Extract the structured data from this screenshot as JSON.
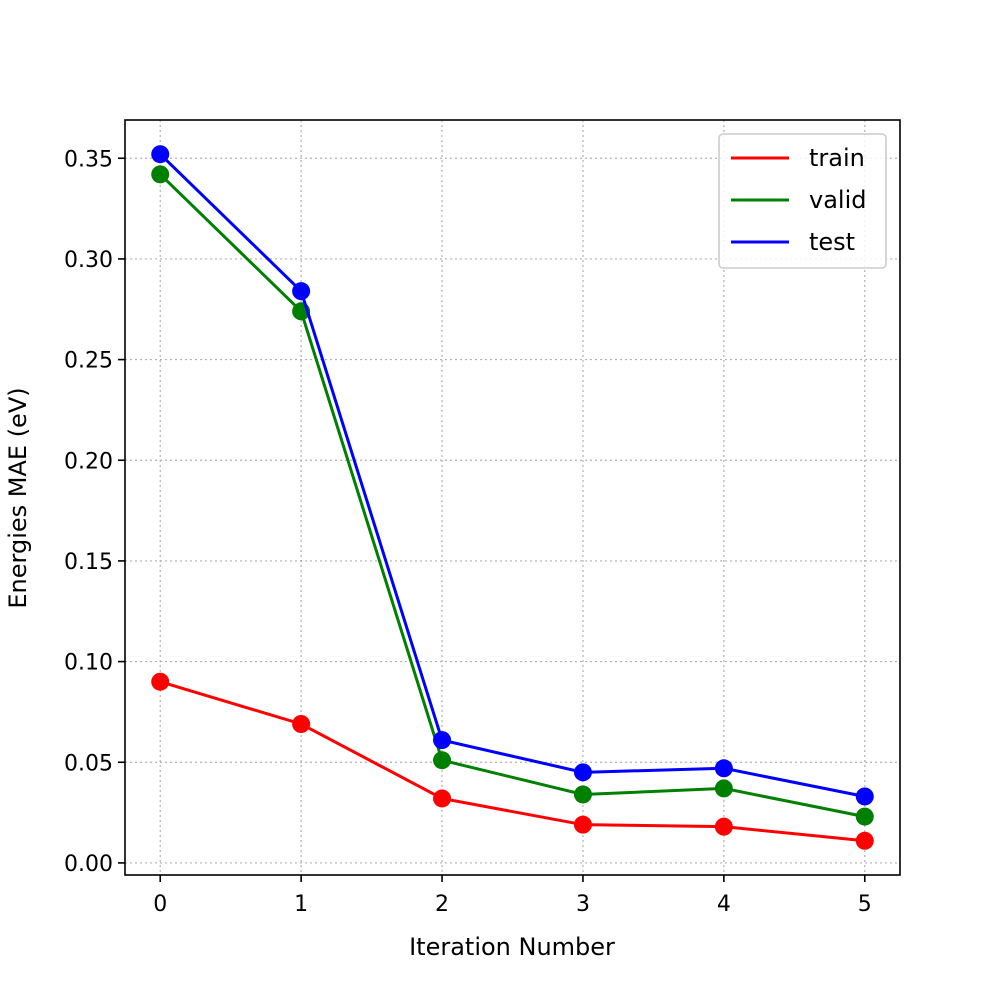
{
  "chart_data": {
    "type": "line",
    "title": "",
    "xlabel": "Iteration Number",
    "ylabel": "Energies MAE (eV)",
    "x": [
      0,
      1,
      2,
      3,
      4,
      5
    ],
    "x_ticks": [
      "0",
      "1",
      "2",
      "3",
      "4",
      "5"
    ],
    "xlim": [
      -0.25,
      5.25
    ],
    "ylim": [
      -0.006,
      0.369
    ],
    "y_ticks": [
      "0.00",
      "0.05",
      "0.10",
      "0.15",
      "0.20",
      "0.25",
      "0.30",
      "0.35"
    ],
    "y_tick_values": [
      0.0,
      0.05,
      0.1,
      0.15,
      0.2,
      0.25,
      0.3,
      0.35
    ],
    "grid": true,
    "legend_position": "top-right",
    "series": [
      {
        "name": "train",
        "color": "#ff0000",
        "values": [
          0.09,
          0.069,
          0.032,
          0.019,
          0.018,
          0.011
        ]
      },
      {
        "name": "valid",
        "color": "#008000",
        "values": [
          0.342,
          0.274,
          0.051,
          0.034,
          0.037,
          0.023
        ]
      },
      {
        "name": "test",
        "color": "#0000ff",
        "values": [
          0.352,
          0.284,
          0.061,
          0.045,
          0.047,
          0.033
        ]
      }
    ]
  }
}
